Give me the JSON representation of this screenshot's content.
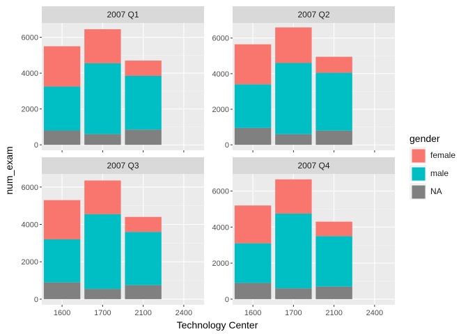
{
  "chart_data": {
    "type": "bar",
    "stacked": true,
    "facet_layout": "2x2",
    "free_y_scales": true,
    "xlabel": "Technology Center",
    "ylabel": "num_exam",
    "categories": [
      "1600",
      "1700",
      "2100",
      "2400"
    ],
    "legend": {
      "title": "gender",
      "position": "right",
      "entries": [
        {
          "label": "female",
          "color": "#F8766D"
        },
        {
          "label": "male",
          "color": "#00BFC4"
        },
        {
          "label": "NA",
          "color": "#808080"
        }
      ]
    },
    "grid": true,
    "panels": [
      {
        "title": "2007 Q1",
        "ylim": [
          0,
          6800
        ],
        "yticks": [
          0,
          2000,
          4000,
          6000
        ],
        "series": [
          {
            "name": "NA",
            "values": [
              800,
              600,
              850,
              null
            ]
          },
          {
            "name": "male",
            "values": [
              2450,
              3950,
              3000,
              null
            ]
          },
          {
            "name": "female",
            "values": [
              2250,
              1900,
              850,
              null
            ]
          }
        ]
      },
      {
        "title": "2007 Q2",
        "ylim": [
          0,
          6850
        ],
        "yticks": [
          0,
          2000,
          4000,
          6000
        ],
        "series": [
          {
            "name": "NA",
            "values": [
              950,
              600,
              800,
              null
            ]
          },
          {
            "name": "male",
            "values": [
              2450,
              4000,
              3250,
              null
            ]
          },
          {
            "name": "female",
            "values": [
              2250,
              2000,
              900,
              null
            ]
          }
        ]
      },
      {
        "title": "2007 Q3",
        "ylim": [
          0,
          6700
        ],
        "yticks": [
          0,
          2000,
          4000,
          6000
        ],
        "series": [
          {
            "name": "NA",
            "values": [
              900,
              550,
              750,
              null
            ]
          },
          {
            "name": "male",
            "values": [
              2300,
              4000,
              2850,
              null
            ]
          },
          {
            "name": "female",
            "values": [
              2100,
              1800,
              800,
              null
            ]
          }
        ]
      },
      {
        "title": "2007 Q4",
        "ylim": [
          0,
          6950
        ],
        "yticks": [
          0,
          2000,
          4000,
          6000
        ],
        "series": [
          {
            "name": "NA",
            "values": [
              900,
              600,
              700,
              null
            ]
          },
          {
            "name": "male",
            "values": [
              2200,
              4150,
              2800,
              null
            ]
          },
          {
            "name": "female",
            "values": [
              2100,
              1900,
              800,
              null
            ]
          }
        ]
      }
    ]
  }
}
